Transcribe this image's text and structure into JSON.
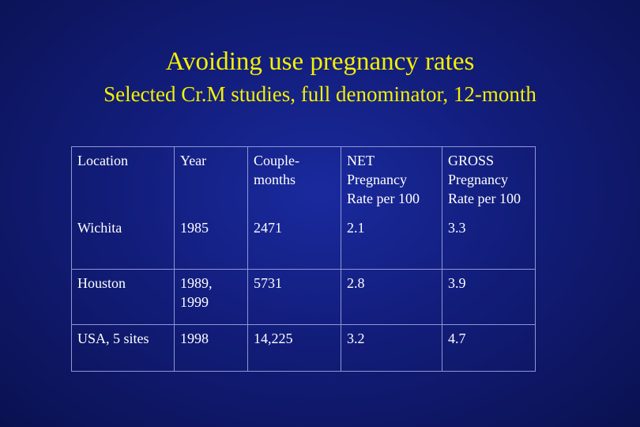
{
  "slide": {
    "title": "Avoiding use pregnancy rates",
    "subtitle": "Selected Cr.M studies, full denominator, 12-month"
  },
  "table": {
    "headers": {
      "location": "Location",
      "year": "Year",
      "couple_months": [
        "Couple-",
        "months"
      ],
      "net": [
        "NET",
        "Pregnancy",
        "Rate per 100"
      ],
      "gross": [
        "GROSS",
        "Pregnancy",
        "Rate per 100"
      ]
    },
    "rows": [
      {
        "location": "Wichita",
        "year": [
          "1985"
        ],
        "couple_months": "2471",
        "net": "2.1",
        "gross": "3.3"
      },
      {
        "location": "Houston",
        "year": [
          "1989,",
          "1999"
        ],
        "couple_months": "5731",
        "net": "2.8",
        "gross": "3.9"
      },
      {
        "location": "USA, 5 sites",
        "year": [
          "1998"
        ],
        "couple_months": "14,225",
        "net": "3.2",
        "gross": "4.7"
      }
    ]
  }
}
